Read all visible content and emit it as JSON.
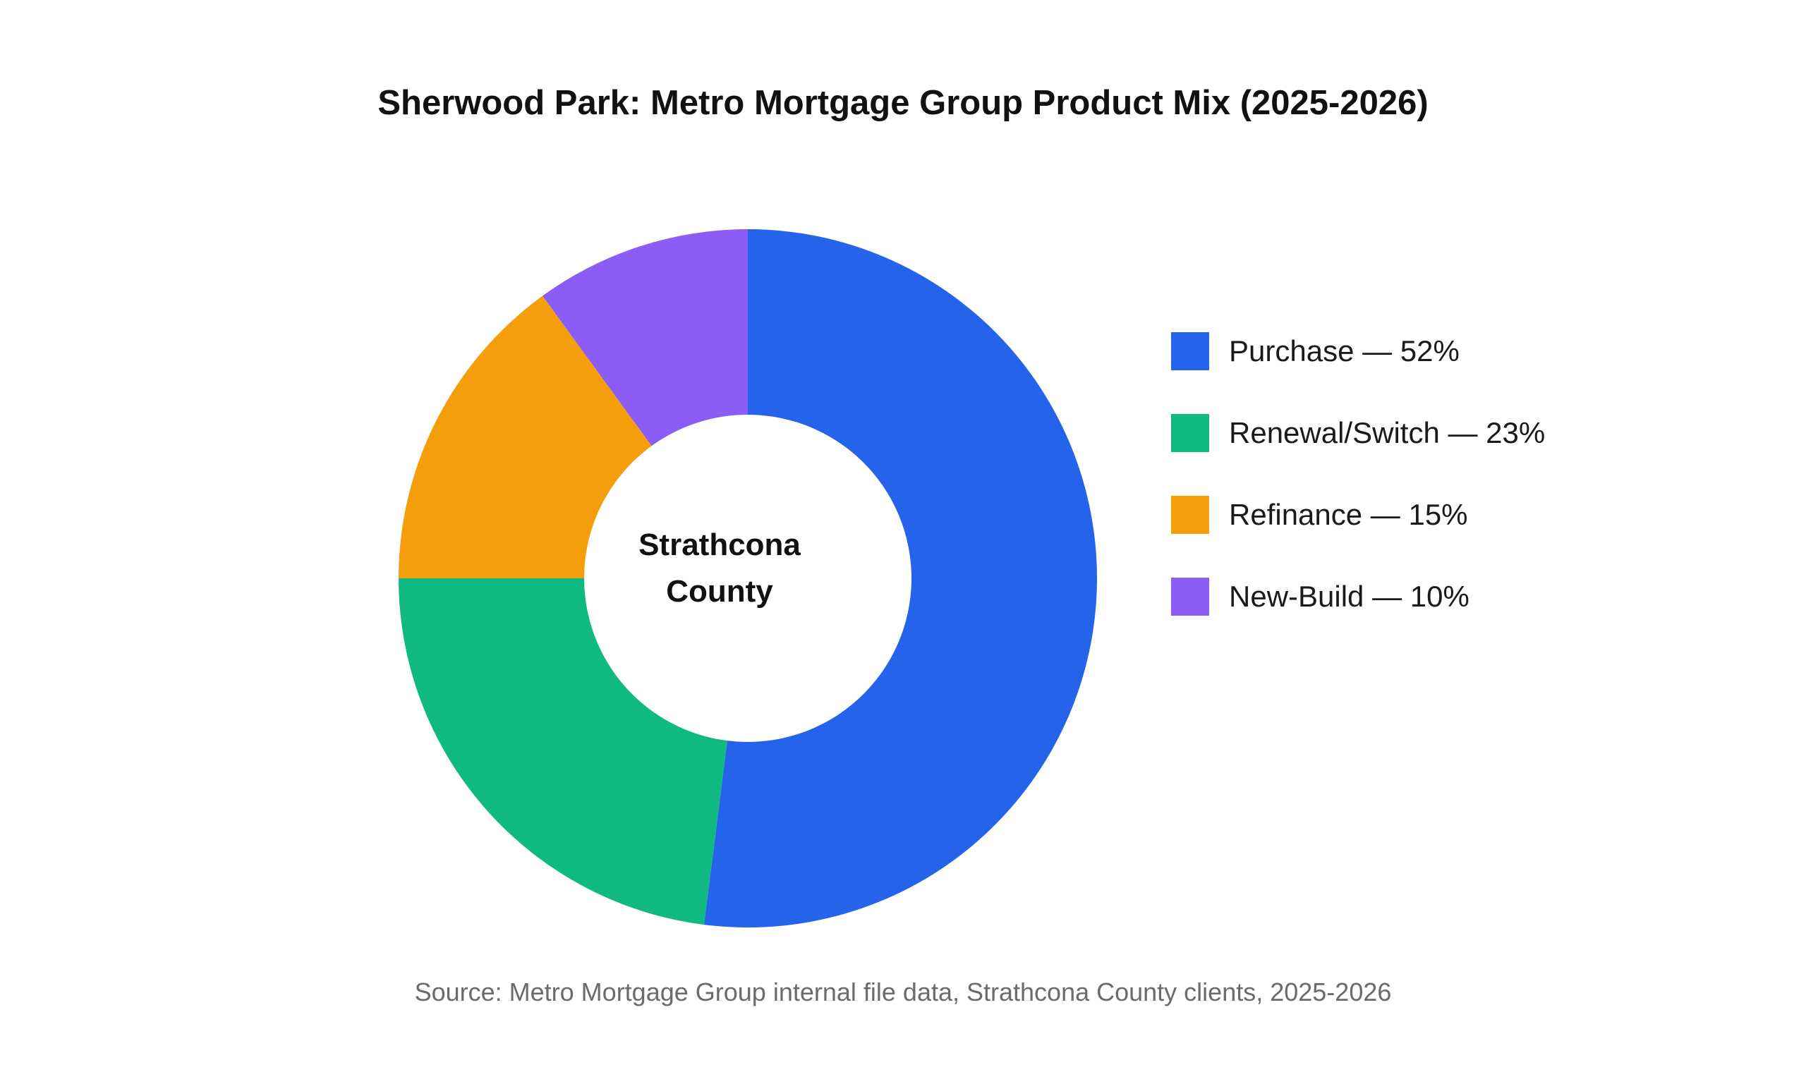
{
  "chart_data": {
    "type": "pie",
    "variant": "donut",
    "title": "Sherwood Park: Metro Mortgage Group Product Mix (2025-2026)",
    "center_label": [
      "Strathcona",
      "County"
    ],
    "slices": [
      {
        "label": "Purchase",
        "value": 52,
        "color": "#2563EB",
        "legend_text": "Purchase — 52%"
      },
      {
        "label": "Renewal/Switch",
        "value": 23,
        "color": "#10B981",
        "legend_text": "Renewal/Switch — 23%"
      },
      {
        "label": "Refinance",
        "value": 15,
        "color": "#F59E0B",
        "legend_text": "Refinance — 15%"
      },
      {
        "label": "New-Build",
        "value": 10,
        "color": "#8B5CF6",
        "legend_text": "New-Build — 10%"
      }
    ],
    "legend_position": "right",
    "source": "Source: Metro Mortgage Group internal file data, Strathcona County clients, 2025-2026"
  }
}
